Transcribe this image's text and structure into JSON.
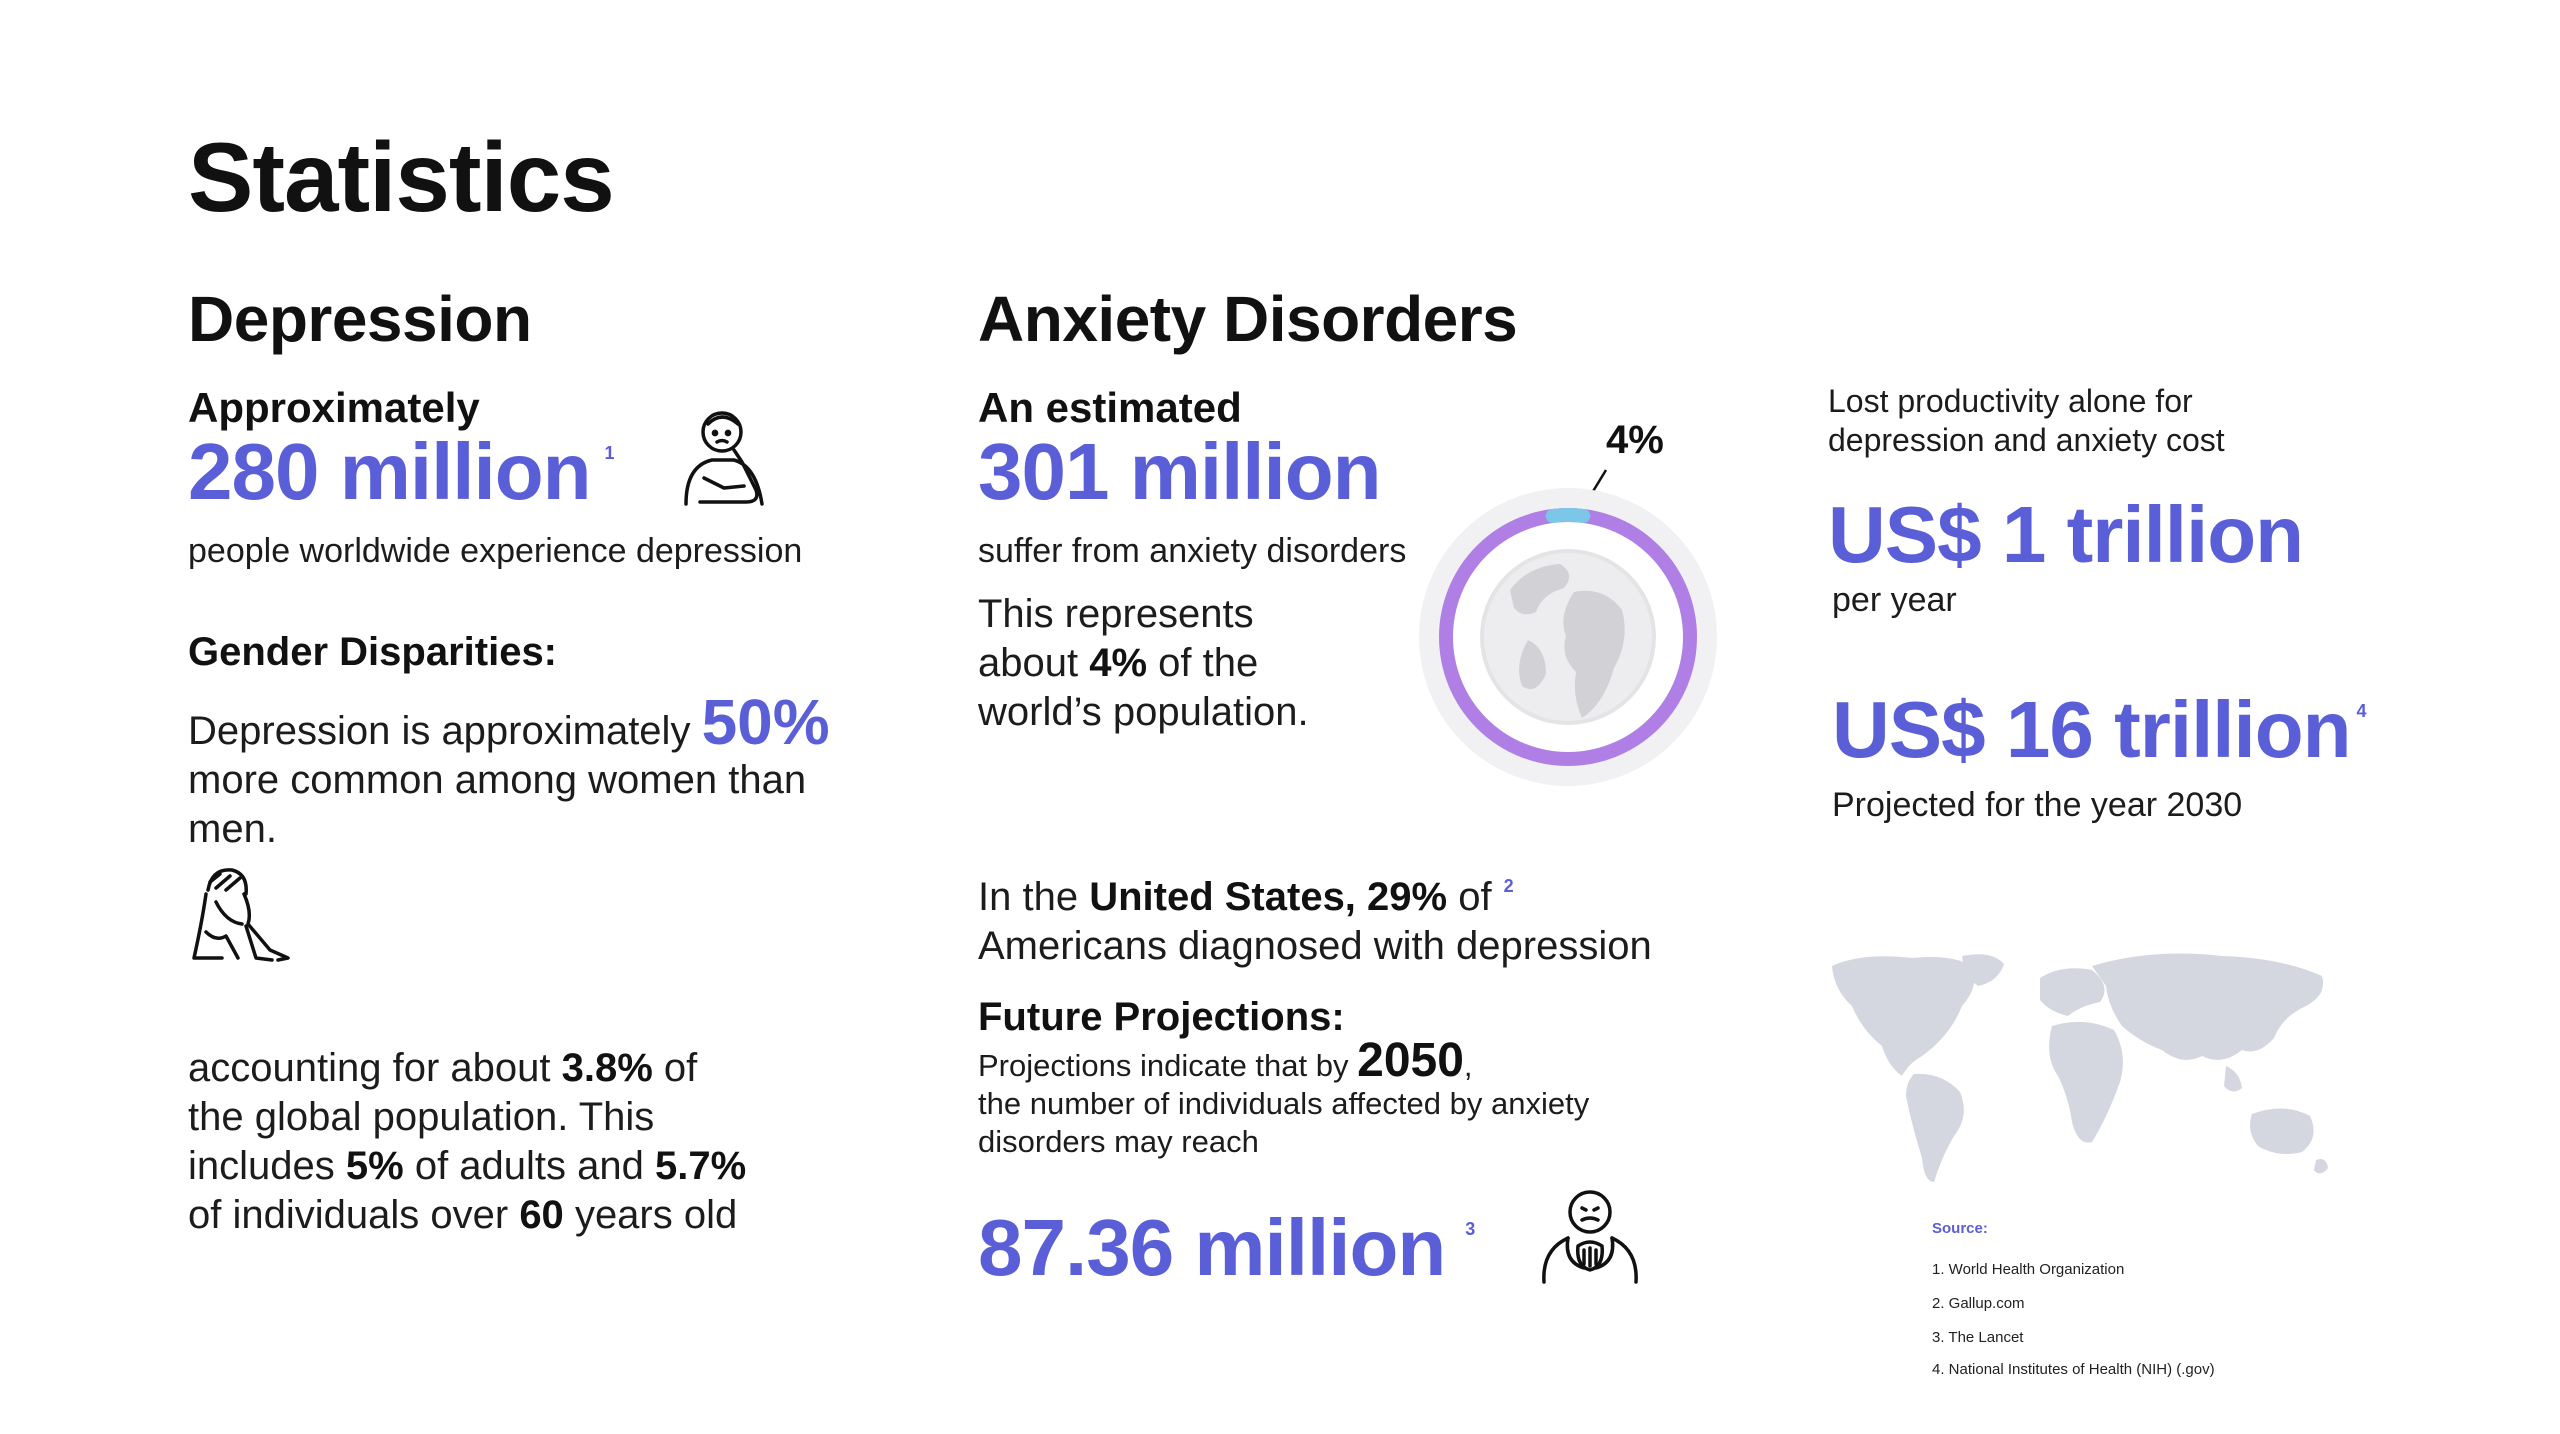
{
  "title": "Statistics",
  "depression": {
    "heading": "Depression",
    "lead": "Approximately",
    "figure": "280 million",
    "figure_ref": "1",
    "desc": "people worldwide experience depression",
    "gender_heading": "Gender Disparities:",
    "gender_text_1": "Depression is approximately",
    "gender_pct": "50%",
    "gender_text_2": "more common among women than men.",
    "acct_1": "accounting for about",
    "acct_pct": "3.8%",
    "acct_2": "of the global population. This includes",
    "acct_adults": "5%",
    "acct_3": "of adults and",
    "acct_elder": "5.7%",
    "acct_4": "of individuals over",
    "acct_age": "60",
    "acct_5": "years old"
  },
  "anxiety": {
    "heading": "Anxiety Disorders",
    "lead": "An estimated",
    "figure": "301 million",
    "desc": "suffer from anxiety disorders",
    "rep_1": "This represents about",
    "rep_pct": "4%",
    "rep_2": "of the world’s population.",
    "donut_label": "4%",
    "donut_pct": 4,
    "us_1": "In the",
    "us_country": "United States, 29%",
    "us_2": "of",
    "us_ref": "2",
    "us_3": "Americans diagnosed with depression",
    "future_heading": "Future Projections:",
    "future_1": "Projections indicate that by",
    "future_year": "2050",
    "future_2": "the number of individuals affected by anxiety disorders may reach",
    "future_figure": "87.36 million",
    "future_ref": "3"
  },
  "economy": {
    "intro": "Lost productivity alone for depression and anxiety cost",
    "figure_1": "US$ 1 trillion",
    "figure_1_note": "per year",
    "figure_2": "US$ 16 trillion",
    "figure_2_ref": "4",
    "figure_2_note": "Projected for the year 2030"
  },
  "sources": {
    "title": "Source:",
    "items": [
      "1. World Health Organization",
      "2. Gallup.com",
      "3. The Lancet",
      "4. National Institutes of Health (NIH) (.gov)"
    ]
  },
  "colors": {
    "accent": "#5a5fd8",
    "donut_ring": "#b07fe6",
    "donut_marker": "#7cc7e8",
    "map": "#d4d7e0"
  },
  "icons": [
    "thinking-person-icon",
    "sad-sitting-person-icon",
    "worried-person-icon",
    "globe-icon",
    "world-map-icon"
  ]
}
